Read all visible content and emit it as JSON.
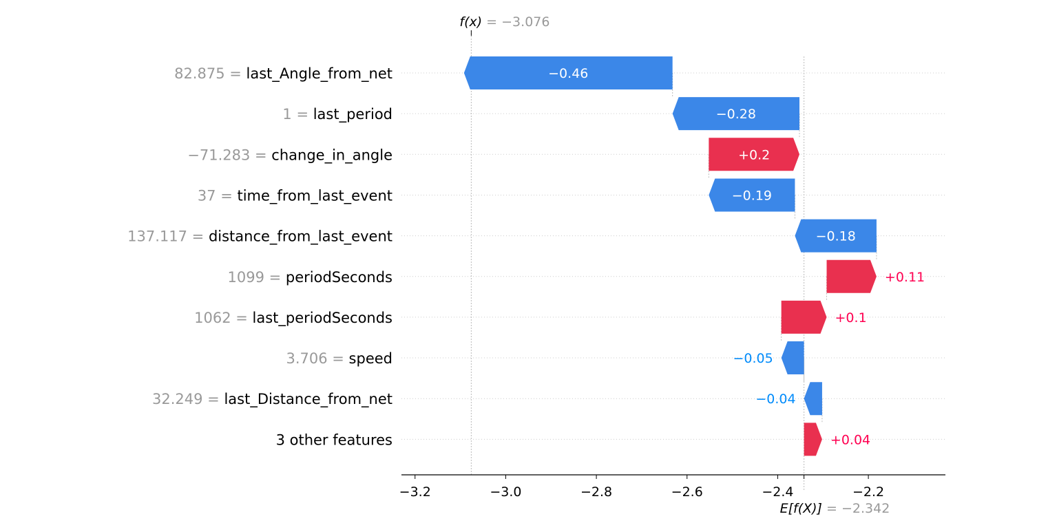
{
  "chart_data": {
    "type": "waterfall",
    "fx_value": -3.076,
    "fx_label_main": "f(x)",
    "fx_label_rest": " = −3.076",
    "efx_value": -2.342,
    "efx_label_main": "E[f(X)]",
    "efx_label_rest": " = −2.342",
    "xlim": [
      -3.23,
      -2.03
    ],
    "xticks": [
      -3.2,
      -3.0,
      -2.8,
      -2.6,
      -2.4,
      -2.2
    ],
    "xtick_labels": [
      "−3.2",
      "−3.0",
      "−2.8",
      "−2.6",
      "−2.4",
      "−2.2"
    ],
    "features": [
      {
        "value": "82.875",
        "name": "last_Angle_from_net",
        "contribution": -0.46,
        "label": "−0.46"
      },
      {
        "value": "1",
        "name": "last_period",
        "contribution": -0.28,
        "label": "−0.28"
      },
      {
        "value": "−71.283",
        "name": "change_in_angle",
        "contribution": 0.2,
        "label": "+0.2"
      },
      {
        "value": "37",
        "name": "time_from_last_event",
        "contribution": -0.19,
        "label": "−0.19"
      },
      {
        "value": "137.117",
        "name": "distance_from_last_event",
        "contribution": -0.18,
        "label": "−0.18"
      },
      {
        "value": "1099",
        "name": "periodSeconds",
        "contribution": 0.11,
        "label": "+0.11"
      },
      {
        "value": "1062",
        "name": "last_periodSeconds",
        "contribution": 0.1,
        "label": "+0.1"
      },
      {
        "value": "3.706",
        "name": "speed",
        "contribution": -0.05,
        "label": "−0.05"
      },
      {
        "value": "32.249",
        "name": "last_Distance_from_net",
        "contribution": -0.04,
        "label": "−0.04"
      },
      {
        "value": "",
        "name": "3 other features",
        "contribution": 0.04,
        "label": "+0.04"
      }
    ],
    "colors": {
      "positive": "#ff0051",
      "negative": "#008bfb",
      "positive_bar": "#e9304f",
      "negative_bar": "#3b87e8"
    }
  }
}
